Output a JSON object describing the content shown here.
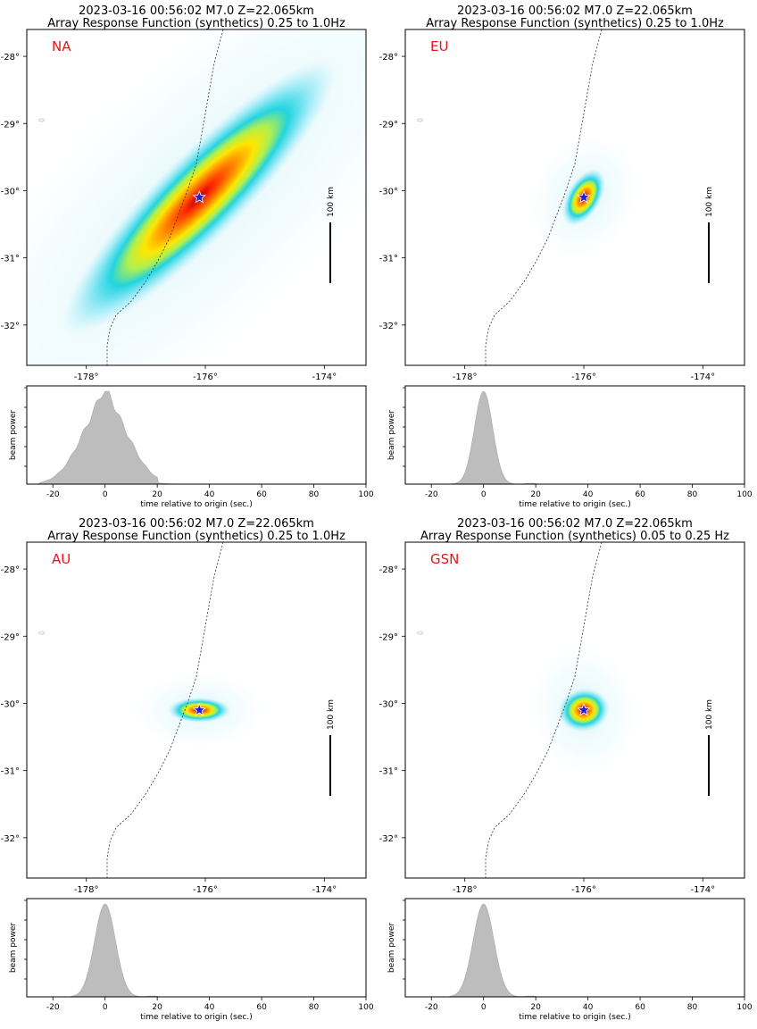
{
  "panels": [
    {
      "id": "na",
      "title_line1": "2023-03-16 00:56:02 M7.0 Z=22.065km",
      "title_line2": "Array Response Function (synthetics) 0.25 to 1.0Hz",
      "label": "NA",
      "scale_label": "100 km",
      "blob": {
        "lon": -176.1,
        "lat": -30.1,
        "angle_deg": -45,
        "major_deg": 3.3,
        "minor_deg": 0.75
      },
      "star": {
        "lon": -176.1,
        "lat": -30.1
      },
      "beam": {
        "shape": "broad",
        "center_s": 0,
        "width_s": 9,
        "onset_s": -25,
        "end_s": 20
      }
    },
    {
      "id": "eu",
      "title_line1": "2023-03-16 00:56:02 M7.0 Z=22.065km",
      "title_line2": "Array Response Function (synthetics) 0.25 to 1.0Hz",
      "label": "EU",
      "scale_label": "100 km",
      "blob": {
        "lon": -176.0,
        "lat": -30.1,
        "angle_deg": -60,
        "major_deg": 0.55,
        "minor_deg": 0.3
      },
      "star": {
        "lon": -176.0,
        "lat": -30.1
      },
      "beam": {
        "shape": "narrow",
        "center_s": 0,
        "width_s": 3.5,
        "onset_s": -20,
        "end_s": 20
      }
    },
    {
      "id": "au",
      "title_line1": "2023-03-16 00:56:02 M7.0 Z=22.065km",
      "title_line2": "Array Response Function (synthetics) 0.25 to 1.0Hz",
      "label": "AU",
      "scale_label": "100 km",
      "blob": {
        "lon": -176.1,
        "lat": -30.1,
        "angle_deg": 0,
        "major_deg": 0.55,
        "minor_deg": 0.22
      },
      "star": {
        "lon": -176.1,
        "lat": -30.1
      },
      "beam": {
        "shape": "narrow",
        "center_s": 0,
        "width_s": 4,
        "onset_s": -22,
        "end_s": 22
      }
    },
    {
      "id": "gsn",
      "title_line1": "2023-03-16 00:56:02 M7.0 Z=22.065km",
      "title_line2": "Array Response Function (synthetics) 0.05 to 0.25 Hz",
      "label": "GSN",
      "scale_label": "100 km",
      "blob": {
        "lon": -176.0,
        "lat": -30.1,
        "angle_deg": -10,
        "major_deg": 0.45,
        "minor_deg": 0.38
      },
      "star": {
        "lon": -176.0,
        "lat": -30.1
      },
      "beam": {
        "shape": "narrow",
        "center_s": 0,
        "width_s": 4,
        "onset_s": -20,
        "end_s": 20
      }
    }
  ],
  "map_axes": {
    "xlim": [
      -179.0,
      -173.3
    ],
    "ylim": [
      -32.6,
      -27.6
    ],
    "xticks": [
      -178,
      -176,
      -174
    ],
    "xtick_labels": [
      "-178°",
      "-176°",
      "-174°"
    ],
    "yticks": [
      -28,
      -29,
      -30,
      -31,
      -32
    ],
    "ytick_labels": [
      "-28°",
      "-29°",
      "-30°",
      "-31°",
      "-32°"
    ]
  },
  "beam_axes": {
    "xlim": [
      -30,
      100
    ],
    "xticks": [
      -20,
      0,
      20,
      40,
      60,
      80,
      100
    ],
    "xtick_labels": [
      "-20",
      "0",
      "20",
      "40",
      "60",
      "80",
      "100"
    ],
    "xlabel": "time relative to origin (sec.)",
    "ylabel": "beam power"
  },
  "colors": {
    "label": "#e8141a",
    "star_fill": "#1f1fd6",
    "star_edge": "#ffffff",
    "beam_fill": "#bdbdbd",
    "trench": "#333333"
  },
  "chart_data": [
    {
      "type": "heatmap",
      "title": "2023-03-16 00:56:02 M7.0 Z=22.065km / Array Response Function (synthetics) 0.25 to 1.0Hz",
      "label": "NA",
      "xlim": [
        -179.0,
        -173.3
      ],
      "ylim": [
        -32.6,
        -27.6
      ],
      "peak": {
        "lon": -176.1,
        "lat": -30.1
      }
    },
    {
      "type": "area",
      "label": "NA",
      "xlabel": "time relative to origin (sec.)",
      "ylabel": "beam power",
      "xlim": [
        -30,
        100
      ],
      "peak_time_s": 0
    },
    {
      "type": "heatmap",
      "title": "2023-03-16 00:56:02 M7.0 Z=22.065km / Array Response Function (synthetics) 0.25 to 1.0Hz",
      "label": "EU",
      "xlim": [
        -179.0,
        -173.3
      ],
      "ylim": [
        -32.6,
        -27.6
      ],
      "peak": {
        "lon": -176.0,
        "lat": -30.1
      }
    },
    {
      "type": "area",
      "label": "EU",
      "xlabel": "time relative to origin (sec.)",
      "ylabel": "beam power",
      "xlim": [
        -30,
        100
      ],
      "peak_time_s": 0
    },
    {
      "type": "heatmap",
      "title": "2023-03-16 00:56:02 M7.0 Z=22.065km / Array Response Function (synthetics) 0.25 to 1.0Hz",
      "label": "AU",
      "xlim": [
        -179.0,
        -173.3
      ],
      "ylim": [
        -32.6,
        -27.6
      ],
      "peak": {
        "lon": -176.1,
        "lat": -30.1
      }
    },
    {
      "type": "area",
      "label": "AU",
      "xlabel": "time relative to origin (sec.)",
      "ylabel": "beam power",
      "xlim": [
        -30,
        100
      ],
      "peak_time_s": 0
    },
    {
      "type": "heatmap",
      "title": "2023-03-16 00:56:02 M7.0 Z=22.065km / Array Response Function (synthetics) 0.05 to 0.25 Hz",
      "label": "GSN",
      "xlim": [
        -179.0,
        -173.3
      ],
      "ylim": [
        -32.6,
        -27.6
      ],
      "peak": {
        "lon": -176.0,
        "lat": -30.1
      }
    },
    {
      "type": "area",
      "label": "GSN",
      "xlabel": "time relative to origin (sec.)",
      "ylabel": "beam power",
      "xlim": [
        -30,
        100
      ],
      "peak_time_s": 0
    }
  ]
}
